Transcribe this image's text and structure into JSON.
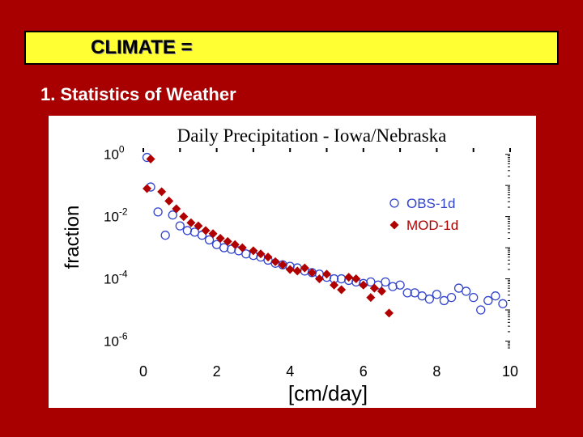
{
  "slide": {
    "title": "CLIMATE =",
    "bullet": "1.  Statistics of Weather"
  },
  "colors": {
    "background": "#a80000",
    "title_bar": "#ffff33",
    "obs": "#3344cc",
    "mod": "#b00000"
  },
  "chart_data": {
    "type": "scatter",
    "title": "Daily Precipitation - Iowa/Nebraska",
    "xlabel": "[cm/day]",
    "ylabel": "fraction",
    "xlim": [
      0,
      10
    ],
    "ylim_log10": [
      -6.3,
      0.2
    ],
    "yscale": "log",
    "x_ticks": [
      "0",
      "2",
      "4",
      "6",
      "8",
      "10"
    ],
    "y_ticks": [
      {
        "exp": 0,
        "base": "10",
        "sup": "0"
      },
      {
        "exp": -2,
        "base": "10",
        "sup": "-2"
      },
      {
        "exp": -4,
        "base": "10",
        "sup": "-4"
      },
      {
        "exp": -6,
        "base": "10",
        "sup": "-6"
      }
    ],
    "legend_position": "right",
    "series": [
      {
        "name": "OBS-1d",
        "marker": "open-circle",
        "points": [
          [
            0.1,
            -0.1
          ],
          [
            0.2,
            -1.05
          ],
          [
            0.4,
            -1.85
          ],
          [
            0.6,
            -2.6
          ],
          [
            0.8,
            -1.95
          ],
          [
            1.0,
            -2.3
          ],
          [
            1.2,
            -2.45
          ],
          [
            1.4,
            -2.5
          ],
          [
            1.6,
            -2.6
          ],
          [
            1.8,
            -2.75
          ],
          [
            2.0,
            -2.9
          ],
          [
            2.2,
            -3.0
          ],
          [
            2.4,
            -3.05
          ],
          [
            2.6,
            -3.1
          ],
          [
            2.8,
            -3.2
          ],
          [
            3.0,
            -3.25
          ],
          [
            3.2,
            -3.3
          ],
          [
            3.4,
            -3.4
          ],
          [
            3.6,
            -3.5
          ],
          [
            3.8,
            -3.55
          ],
          [
            4.0,
            -3.6
          ],
          [
            4.2,
            -3.65
          ],
          [
            4.4,
            -3.75
          ],
          [
            4.6,
            -3.8
          ],
          [
            4.8,
            -3.85
          ],
          [
            5.0,
            -3.95
          ],
          [
            5.2,
            -4.0
          ],
          [
            5.4,
            -4.0
          ],
          [
            5.6,
            -4.05
          ],
          [
            5.8,
            -4.1
          ],
          [
            6.0,
            -4.15
          ],
          [
            6.2,
            -4.1
          ],
          [
            6.4,
            -4.2
          ],
          [
            6.6,
            -4.1
          ],
          [
            6.8,
            -4.25
          ],
          [
            7.0,
            -4.2
          ],
          [
            7.2,
            -4.45
          ],
          [
            7.4,
            -4.45
          ],
          [
            7.6,
            -4.55
          ],
          [
            7.8,
            -4.65
          ],
          [
            8.0,
            -4.5
          ],
          [
            8.2,
            -4.7
          ],
          [
            8.4,
            -4.6
          ],
          [
            8.6,
            -4.3
          ],
          [
            8.8,
            -4.4
          ],
          [
            9.0,
            -4.6
          ],
          [
            9.2,
            -5.0
          ],
          [
            9.4,
            -4.7
          ],
          [
            9.6,
            -4.55
          ],
          [
            9.8,
            -4.8
          ]
        ]
      },
      {
        "name": "MOD-1d",
        "marker": "filled-diamond",
        "points": [
          [
            0.2,
            -0.15
          ],
          [
            0.1,
            -1.1
          ],
          [
            0.5,
            -1.2
          ],
          [
            0.7,
            -1.5
          ],
          [
            0.9,
            -1.75
          ],
          [
            1.1,
            -2.0
          ],
          [
            1.3,
            -2.2
          ],
          [
            1.5,
            -2.3
          ],
          [
            1.7,
            -2.45
          ],
          [
            1.9,
            -2.55
          ],
          [
            2.1,
            -2.7
          ],
          [
            2.3,
            -2.8
          ],
          [
            2.5,
            -2.9
          ],
          [
            2.7,
            -3.0
          ],
          [
            3.0,
            -3.1
          ],
          [
            3.2,
            -3.2
          ],
          [
            3.4,
            -3.3
          ],
          [
            3.6,
            -3.45
          ],
          [
            3.8,
            -3.55
          ],
          [
            4.0,
            -3.7
          ],
          [
            4.2,
            -3.75
          ],
          [
            4.4,
            -3.65
          ],
          [
            4.6,
            -3.8
          ],
          [
            4.8,
            -4.0
          ],
          [
            5.0,
            -3.85
          ],
          [
            5.2,
            -4.2
          ],
          [
            5.4,
            -4.35
          ],
          [
            5.6,
            -3.95
          ],
          [
            5.8,
            -4.0
          ],
          [
            6.0,
            -4.2
          ],
          [
            6.2,
            -4.6
          ],
          [
            6.5,
            -4.4
          ],
          [
            6.3,
            -4.3
          ],
          [
            6.7,
            -5.1
          ]
        ]
      }
    ]
  }
}
